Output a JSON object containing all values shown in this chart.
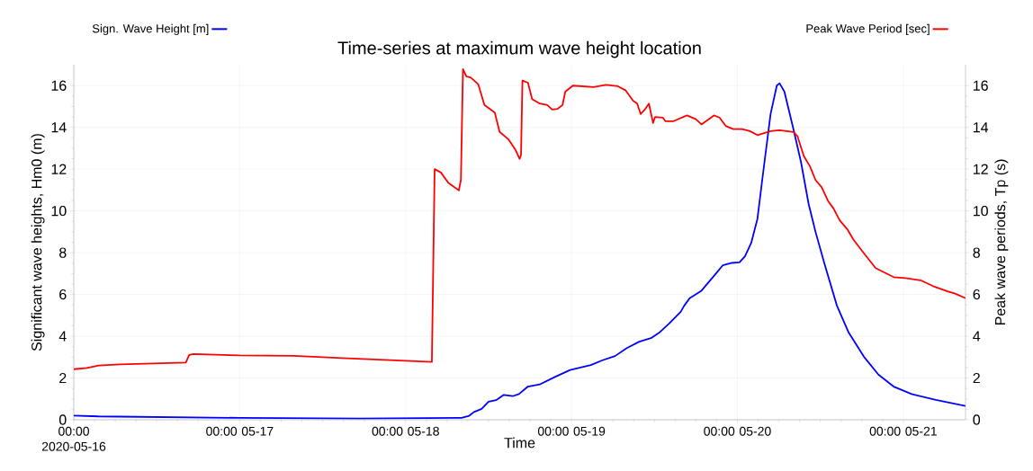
{
  "chart_data": {
    "type": "line",
    "title": "Time-series at maximum wave height location",
    "xlabel": "Time",
    "ylabel": "Significant wave heights, Hm0 (m)",
    "y2label": "Peak wave periods, Tp (s)",
    "xlim": [
      "2020-05-16T00:00",
      "2020-05-21T09:00"
    ],
    "xticks": [
      {
        "value": "2020-05-16",
        "label": "00:00 2020-05-16"
      },
      {
        "value": "2020-05-17",
        "label": "00:00 05-17"
      },
      {
        "value": "2020-05-18",
        "label": "00:00 05-18"
      },
      {
        "value": "2020-05-19",
        "label": "00:00 05-19"
      },
      {
        "value": "2020-05-20",
        "label": "00:00 05-20"
      },
      {
        "value": "2020-05-21",
        "label": "00:00 05-21"
      }
    ],
    "ylim": [
      0,
      17
    ],
    "yticks": [
      0,
      2,
      4,
      6,
      8,
      10,
      12,
      14,
      16
    ],
    "y2lim": [
      0,
      17
    ],
    "y2ticks": [
      0,
      2,
      4,
      6,
      8,
      10,
      12,
      14,
      16
    ],
    "grid": true,
    "legend": "top",
    "line_style": "solid",
    "marker": "none",
    "series": [
      {
        "name": "Sign. Wave Height [m]",
        "color": "#0000ff",
        "x": [
          "2020-05-16T00:00",
          "2020-05-16T03:36",
          "2020-05-17T00:00",
          "2020-05-17T17:24",
          "2020-05-18T08:06",
          "2020-05-18T09:12",
          "2020-05-18T09:54",
          "2020-05-18T11:00",
          "2020-05-18T12:00",
          "2020-05-18T13:06",
          "2020-05-18T14:12",
          "2020-05-18T15:30",
          "2020-05-18T16:24",
          "2020-05-18T17:42",
          "2020-05-18T19:24",
          "2020-05-18T21:36",
          "2020-05-18T23:48",
          "2020-05-19T02:48",
          "2020-05-19T04:30",
          "2020-05-19T06:18",
          "2020-05-19T08:00",
          "2020-05-19T09:48",
          "2020-05-19T11:30",
          "2020-05-19T12:48",
          "2020-05-19T14:06",
          "2020-05-19T15:48",
          "2020-05-19T16:18",
          "2020-05-19T17:06",
          "2020-05-19T18:48",
          "2020-05-19T21:00",
          "2020-05-19T21:54",
          "2020-05-19T23:12",
          "2020-05-20T00:18",
          "2020-05-20T01:06",
          "2020-05-20T02:00",
          "2020-05-20T02:54",
          "2020-05-20T03:42",
          "2020-05-20T04:48",
          "2020-05-20T05:42",
          "2020-05-20T06:06",
          "2020-05-20T06:48",
          "2020-05-20T08:06",
          "2020-05-20T09:12",
          "2020-05-20T10:18",
          "2020-05-20T11:18",
          "2020-05-20T12:36",
          "2020-05-20T14:24",
          "2020-05-20T16:06",
          "2020-05-20T18:18",
          "2020-05-20T20:24",
          "2020-05-20T22:36",
          "2020-05-21T01:12",
          "2020-05-21T04:42",
          "2020-05-21T09:00"
        ],
        "values": [
          0.2,
          0.16,
          0.09,
          0.06,
          0.09,
          0.19,
          0.37,
          0.52,
          0.87,
          0.94,
          1.19,
          1.13,
          1.23,
          1.59,
          1.69,
          2.05,
          2.38,
          2.62,
          2.85,
          3.05,
          3.43,
          3.74,
          3.91,
          4.2,
          4.6,
          5.17,
          5.46,
          5.82,
          6.18,
          7.04,
          7.4,
          7.51,
          7.54,
          7.83,
          8.47,
          9.62,
          11.77,
          14.64,
          16.0,
          16.11,
          15.71,
          13.92,
          12.34,
          10.34,
          9.0,
          7.47,
          5.46,
          4.17,
          3.02,
          2.16,
          1.59,
          1.23,
          0.95,
          0.66
        ]
      },
      {
        "name": "Peak Wave Period [sec]",
        "color": "#ff0000",
        "axis": "y2",
        "x": [
          "2020-05-16T00:00",
          "2020-05-16T01:54",
          "2020-05-16T03:36",
          "2020-05-16T06:42",
          "2020-05-16T16:12",
          "2020-05-16T16:42",
          "2020-05-16T17:18",
          "2020-05-17T00:00",
          "2020-05-17T07:48",
          "2020-05-17T14:48",
          "2020-05-18T03:48",
          "2020-05-18T04:12",
          "2020-05-18T05:06",
          "2020-05-18T06:12",
          "2020-05-18T07:42",
          "2020-05-18T08:00",
          "2020-05-18T08:18",
          "2020-05-18T08:48",
          "2020-05-18T09:24",
          "2020-05-18T10:30",
          "2020-05-18T11:24",
          "2020-05-18T12:54",
          "2020-05-18T13:36",
          "2020-05-18T14:54",
          "2020-05-18T15:54",
          "2020-05-18T16:30",
          "2020-05-18T16:42",
          "2020-05-18T16:54",
          "2020-05-18T17:42",
          "2020-05-18T18:18",
          "2020-05-18T19:24",
          "2020-05-18T20:30",
          "2020-05-18T21:12",
          "2020-05-18T22:00",
          "2020-05-18T22:42",
          "2020-05-18T23:06",
          "2020-05-19T00:12",
          "2020-05-19T03:12",
          "2020-05-19T05:00",
          "2020-05-19T06:42",
          "2020-05-19T07:48",
          "2020-05-19T08:54",
          "2020-05-19T09:30",
          "2020-05-19T10:00",
          "2020-05-19T10:36",
          "2020-05-19T11:12",
          "2020-05-19T11:48",
          "2020-05-19T12:06",
          "2020-05-19T13:12",
          "2020-05-19T13:36",
          "2020-05-19T14:42",
          "2020-05-19T16:42",
          "2020-05-19T18:00",
          "2020-05-19T18:48",
          "2020-05-19T20:36",
          "2020-05-19T21:24",
          "2020-05-19T22:18",
          "2020-05-19T23:24",
          "2020-05-20T00:42",
          "2020-05-20T01:48",
          "2020-05-20T02:54",
          "2020-05-20T04:48",
          "2020-05-20T06:06",
          "2020-05-20T08:06",
          "2020-05-20T08:42",
          "2020-05-20T09:36",
          "2020-05-20T10:30",
          "2020-05-20T11:18",
          "2020-05-20T12:12",
          "2020-05-20T13:06",
          "2020-05-20T13:54",
          "2020-05-20T14:48",
          "2020-05-20T15:54",
          "2020-05-20T16:48",
          "2020-05-20T18:18",
          "2020-05-20T20:00",
          "2020-05-20T20:54",
          "2020-05-20T22:36",
          "2020-05-21T00:18",
          "2020-05-21T02:30",
          "2020-05-21T04:18",
          "2020-05-21T06:24",
          "2020-05-21T07:30",
          "2020-05-21T09:00"
        ],
        "values": [
          2.42,
          2.48,
          2.6,
          2.65,
          2.74,
          3.1,
          3.15,
          3.08,
          3.06,
          2.95,
          2.77,
          12.0,
          11.84,
          11.34,
          10.98,
          11.48,
          16.79,
          16.43,
          16.39,
          16.07,
          15.07,
          14.71,
          13.78,
          13.42,
          12.92,
          12.49,
          12.7,
          16.24,
          16.14,
          15.35,
          15.14,
          15.07,
          14.85,
          14.89,
          15.07,
          15.71,
          16.0,
          15.93,
          16.04,
          15.97,
          15.78,
          15.28,
          15.14,
          14.64,
          14.85,
          15.14,
          14.21,
          14.5,
          14.47,
          14.29,
          14.29,
          14.57,
          14.39,
          14.14,
          14.57,
          14.47,
          14.07,
          13.92,
          13.92,
          13.82,
          13.63,
          13.82,
          13.86,
          13.78,
          13.57,
          12.63,
          12.13,
          11.48,
          11.13,
          10.48,
          10.12,
          9.55,
          9.12,
          8.62,
          7.97,
          7.26,
          7.11,
          6.83,
          6.78,
          6.68,
          6.4,
          6.15,
          6.04,
          5.82
        ]
      }
    ]
  }
}
